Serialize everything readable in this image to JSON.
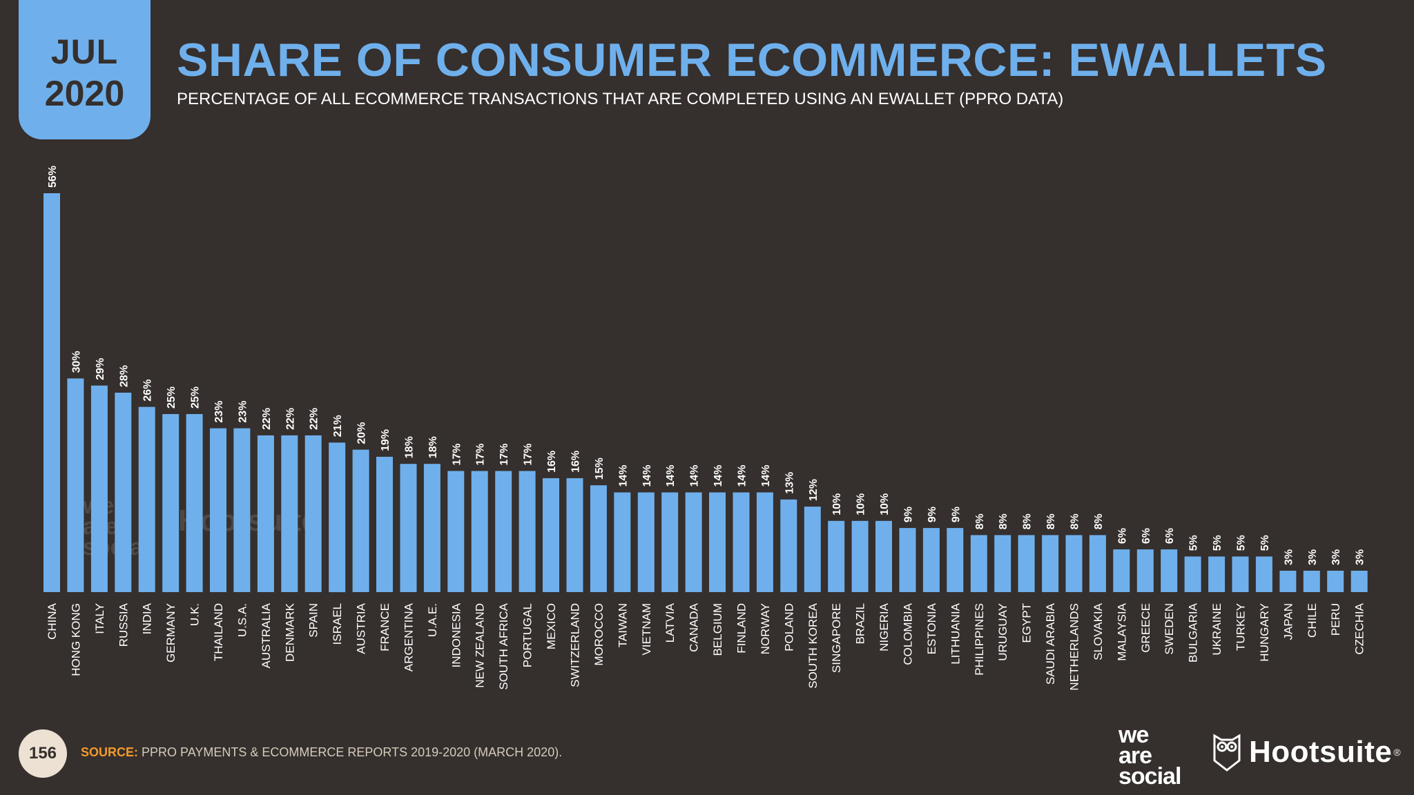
{
  "badge": {
    "month": "JUL",
    "year": "2020"
  },
  "title": "SHARE OF CONSUMER ECOMMERCE: EWALLETS",
  "subtitle": "PERCENTAGE OF ALL ECOMMERCE TRANSACTIONS THAT ARE COMPLETED USING AN EWALLET (PPRO DATA)",
  "footer": {
    "page_number": "156",
    "source_label": "SOURCE:",
    "source_text": "PPRO PAYMENTS & ECOMMERCE REPORTS 2019-2020 (MARCH 2020).",
    "logo_was": [
      "we",
      "are",
      "social"
    ],
    "logo_hootsuite": "Hootsuite",
    "logo_reg": "®"
  },
  "colors": {
    "background": "#352f2d",
    "accent": "#6fb0ec",
    "source_label": "#f39a2c"
  },
  "chart_data": {
    "type": "bar",
    "categories": [
      "CHINA",
      "HONG KONG",
      "ITALY",
      "RUSSIA",
      "INDIA",
      "GERMANY",
      "U.K.",
      "THAILAND",
      "U.S.A.",
      "AUSTRALIA",
      "DENMARK",
      "SPAIN",
      "ISRAEL",
      "AUSTRIA",
      "FRANCE",
      "ARGENTINA",
      "U.A.E.",
      "INDONESIA",
      "NEW ZEALAND",
      "SOUTH AFRICA",
      "PORTUGAL",
      "MEXICO",
      "SWITZERLAND",
      "MOROCCO",
      "TAIWAN",
      "VIETNAM",
      "LATVIA",
      "CANADA",
      "BELGIUM",
      "FINLAND",
      "NORWAY",
      "POLAND",
      "SOUTH KOREA",
      "SINGAPORE",
      "BRAZIL",
      "NIGERIA",
      "COLOMBIA",
      "ESTONIA",
      "LITHUANIA",
      "PHILIPPINES",
      "URUGUAY",
      "EGYPT",
      "SAUDI ARABIA",
      "NETHERLANDS",
      "SLOVAKIA",
      "MALAYSIA",
      "GREECE",
      "SWEDEN",
      "BULGARIA",
      "UKRAINE",
      "TURKEY",
      "HUNGARY",
      "JAPAN",
      "CHILE",
      "PERU",
      "CZECHIA"
    ],
    "values": [
      56,
      30,
      29,
      28,
      26,
      25,
      25,
      23,
      23,
      22,
      22,
      22,
      21,
      20,
      19,
      18,
      18,
      17,
      17,
      17,
      17,
      16,
      16,
      15,
      14,
      14,
      14,
      14,
      14,
      14,
      14,
      13,
      12,
      10,
      10,
      10,
      9,
      9,
      9,
      8,
      8,
      8,
      8,
      8,
      8,
      6,
      6,
      6,
      5,
      5,
      5,
      5,
      3,
      3,
      3,
      3
    ],
    "value_suffix": "%",
    "ylim": [
      0,
      56
    ],
    "grid": false,
    "legend": "none",
    "bar_color": "#6fb0ec"
  }
}
